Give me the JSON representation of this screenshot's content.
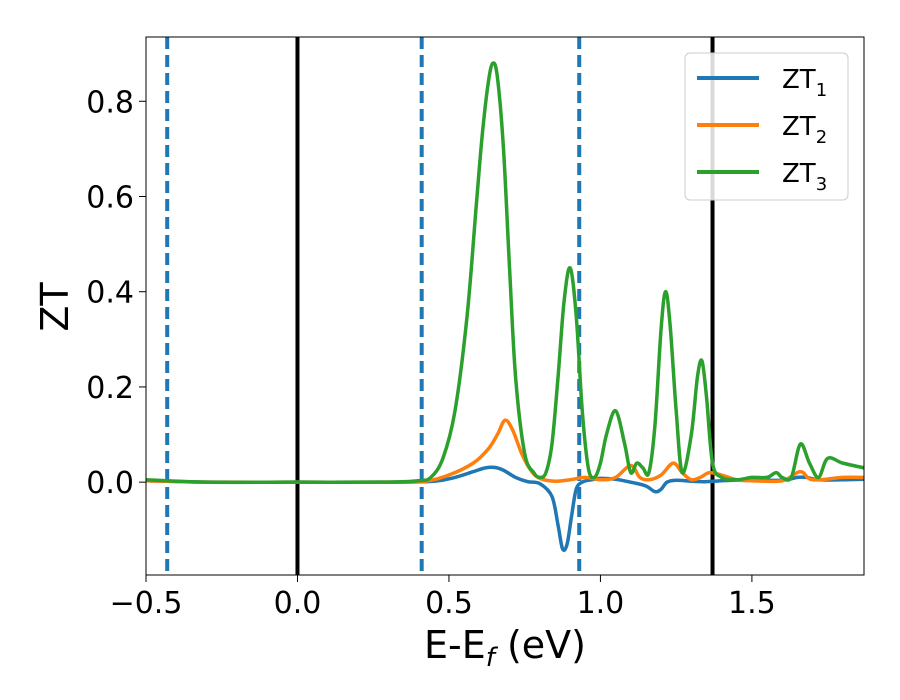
{
  "chart_data": {
    "type": "line",
    "title": "",
    "xlabel": {
      "main": "E-E",
      "sub": "f",
      "tail": " (eV)"
    },
    "ylabel": "ZT",
    "xlim": [
      -0.5,
      1.87
    ],
    "ylim": [
      -0.195,
      0.935
    ],
    "xticks": [
      {
        "value": -0.5,
        "label": "−0.5"
      },
      {
        "value": 0.0,
        "label": "0.0"
      },
      {
        "value": 0.5,
        "label": "0.5"
      },
      {
        "value": 1.0,
        "label": "1.0"
      },
      {
        "value": 1.5,
        "label": "1.5"
      }
    ],
    "yticks": [
      {
        "value": 0.0,
        "label": "0.0"
      },
      {
        "value": 0.2,
        "label": "0.2"
      },
      {
        "value": 0.4,
        "label": "0.4"
      },
      {
        "value": 0.6,
        "label": "0.6"
      },
      {
        "value": 0.8,
        "label": "0.8"
      }
    ],
    "grid": false,
    "legend": {
      "placement": "top-right"
    },
    "vlines": [
      {
        "x": -0.43,
        "style": "dashed",
        "color": "#1f77b4"
      },
      {
        "x": 0.0,
        "style": "solid",
        "color": "#000000"
      },
      {
        "x": 0.41,
        "style": "dashed",
        "color": "#1f77b4"
      },
      {
        "x": 0.93,
        "style": "dashed",
        "color": "#1f77b4"
      },
      {
        "x": 1.37,
        "style": "solid",
        "color": "#000000"
      }
    ],
    "series": [
      {
        "name": "ZT",
        "sub": "1",
        "color": "#1f77b4",
        "x": [
          -0.5,
          -0.3,
          0.0,
          0.3,
          0.45,
          0.52,
          0.58,
          0.62,
          0.65,
          0.68,
          0.72,
          0.76,
          0.8,
          0.84,
          0.86,
          0.875,
          0.89,
          0.905,
          0.92,
          0.94,
          0.97,
          1.0,
          1.05,
          1.1,
          1.15,
          1.18,
          1.2,
          1.22,
          1.25,
          1.3,
          1.35,
          1.4,
          1.5,
          1.6,
          1.65,
          1.68,
          1.72,
          1.8,
          1.87
        ],
        "y": [
          0.003,
          0.0,
          0.0,
          0.0,
          0.002,
          0.01,
          0.022,
          0.03,
          0.031,
          0.025,
          0.01,
          0.001,
          -0.003,
          -0.03,
          -0.09,
          -0.14,
          -0.13,
          -0.07,
          -0.015,
          0.0,
          0.005,
          0.008,
          0.006,
          0.0,
          -0.008,
          -0.02,
          -0.015,
          0.0,
          0.004,
          0.002,
          0.001,
          0.003,
          0.005,
          0.004,
          0.01,
          0.01,
          0.005,
          0.005,
          0.006
        ]
      },
      {
        "name": "ZT",
        "sub": "2",
        "color": "#ff7f0e",
        "x": [
          -0.5,
          -0.3,
          0.0,
          0.3,
          0.42,
          0.5,
          0.58,
          0.63,
          0.66,
          0.685,
          0.71,
          0.74,
          0.77,
          0.8,
          0.85,
          0.9,
          0.95,
          1.0,
          1.05,
          1.1,
          1.13,
          1.16,
          1.2,
          1.24,
          1.27,
          1.3,
          1.33,
          1.36,
          1.4,
          1.45,
          1.5,
          1.6,
          1.66,
          1.7,
          1.8,
          1.87
        ],
        "y": [
          0.003,
          0.0,
          0.0,
          0.0,
          0.002,
          0.015,
          0.04,
          0.07,
          0.1,
          0.13,
          0.11,
          0.06,
          0.025,
          0.008,
          0.002,
          0.005,
          0.01,
          0.005,
          0.01,
          0.035,
          0.01,
          0.005,
          0.015,
          0.04,
          0.02,
          0.005,
          0.01,
          0.02,
          0.015,
          0.005,
          0.003,
          0.003,
          0.022,
          0.005,
          0.01,
          0.01
        ]
      },
      {
        "name": "ZT",
        "sub": "3",
        "color": "#2ca02c",
        "x": [
          -0.5,
          -0.3,
          0.0,
          0.3,
          0.4,
          0.44,
          0.48,
          0.52,
          0.56,
          0.59,
          0.61,
          0.63,
          0.645,
          0.66,
          0.68,
          0.7,
          0.72,
          0.75,
          0.78,
          0.8,
          0.82,
          0.84,
          0.86,
          0.88,
          0.9,
          0.92,
          0.94,
          0.96,
          0.98,
          1.0,
          1.02,
          1.05,
          1.08,
          1.1,
          1.12,
          1.14,
          1.16,
          1.18,
          1.2,
          1.215,
          1.23,
          1.25,
          1.27,
          1.3,
          1.32,
          1.335,
          1.35,
          1.37,
          1.4,
          1.45,
          1.5,
          1.55,
          1.58,
          1.6,
          1.63,
          1.66,
          1.69,
          1.72,
          1.75,
          1.8,
          1.87
        ],
        "y": [
          0.005,
          0.0,
          0.0,
          0.0,
          0.003,
          0.01,
          0.05,
          0.15,
          0.35,
          0.58,
          0.73,
          0.84,
          0.88,
          0.85,
          0.7,
          0.45,
          0.22,
          0.06,
          0.02,
          0.01,
          0.02,
          0.08,
          0.22,
          0.38,
          0.45,
          0.35,
          0.15,
          0.03,
          0.01,
          0.04,
          0.1,
          0.15,
          0.08,
          0.02,
          0.04,
          0.03,
          0.02,
          0.12,
          0.32,
          0.4,
          0.33,
          0.15,
          0.02,
          0.1,
          0.22,
          0.255,
          0.18,
          0.04,
          0.01,
          0.005,
          0.01,
          0.01,
          0.02,
          0.01,
          0.01,
          0.08,
          0.04,
          0.01,
          0.05,
          0.04,
          0.03
        ]
      }
    ]
  }
}
